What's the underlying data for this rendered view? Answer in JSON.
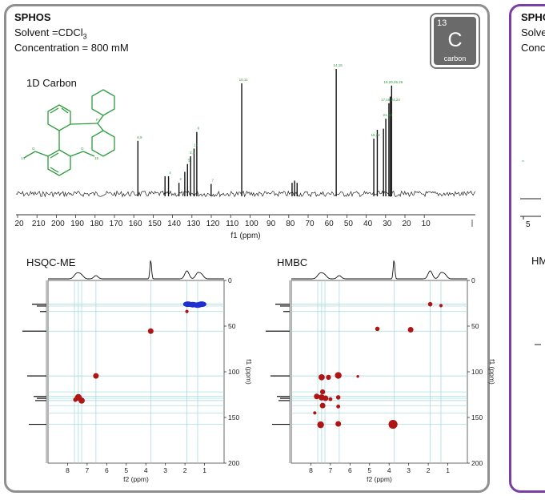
{
  "panel": {
    "compound": "SPHOS",
    "solvent_prefix": "Solvent =CDCl",
    "solvent_subscript": "3",
    "concentration": "Concentration = 800 mM",
    "spectrum_title": "1D Carbon",
    "badge": {
      "mass": "13",
      "symbol": "C",
      "name": "carbon"
    }
  },
  "side_panel": {
    "compound": "SPHO",
    "line1": "Solve",
    "line2": "Conc",
    "label_hm": "HM",
    "tick5": "5"
  },
  "colors": {
    "panel_border": "#8f8f8f",
    "side_border": "#7a3fa1",
    "positive": "#b01515",
    "negative": "#1c2fd0",
    "label_green": "#2b9c3c",
    "grid": "#9ed6dc"
  },
  "chart_data": [
    {
      "type": "line",
      "title": "1D Carbon",
      "xlabel": "f1 (ppm)",
      "xlim": [
        210,
        0
      ],
      "x_ticks": [
        "20",
        "210",
        "200",
        "190",
        "180",
        "170",
        "160",
        "150",
        "140",
        "130",
        "120",
        "110",
        "100",
        "90",
        "80",
        "70",
        "60",
        "50",
        "40",
        "30",
        "20",
        "10"
      ],
      "peaks": [
        {
          "ppm": 157.8,
          "height": 0.48,
          "label": "8,9"
        },
        {
          "ppm": 143.8,
          "height": 0.16,
          "label": ""
        },
        {
          "ppm": 142.0,
          "height": 0.16,
          "label": "4"
        },
        {
          "ppm": 136.6,
          "height": 0.1,
          "label": "2"
        },
        {
          "ppm": 133.6,
          "height": 0.2,
          "label": ""
        },
        {
          "ppm": 132.2,
          "height": 0.27,
          "label": "5"
        },
        {
          "ppm": 130.6,
          "height": 0.34,
          "label": "3,1"
        },
        {
          "ppm": 128.8,
          "height": 0.41,
          "label": "12"
        },
        {
          "ppm": 127.4,
          "height": 0.56,
          "label": "6"
        },
        {
          "ppm": 120.0,
          "height": 0.09,
          "label": "7"
        },
        {
          "ppm": 104.2,
          "height": 1.0,
          "label": "10,11"
        },
        {
          "ppm": 78.2,
          "height": 0.1,
          "label": ""
        },
        {
          "ppm": 76.9,
          "height": 0.12,
          "label": ""
        },
        {
          "ppm": 75.6,
          "height": 0.1,
          "label": ""
        },
        {
          "ppm": 55.4,
          "height": 1.13,
          "label": "14,15"
        },
        {
          "ppm": 36.0,
          "height": 0.5,
          "label": "16,22"
        },
        {
          "ppm": 34.2,
          "height": 0.58,
          "label": ""
        },
        {
          "ppm": 31.0,
          "height": 0.59,
          "label": ""
        },
        {
          "ppm": 29.8,
          "height": 0.68,
          "label": "21,23"
        },
        {
          "ppm": 28.2,
          "height": 0.82,
          "label": "17,18,24,24"
        },
        {
          "ppm": 27.5,
          "height": 0.88,
          "label": ""
        },
        {
          "ppm": 26.8,
          "height": 0.98,
          "label": "19,20,25,26"
        }
      ]
    },
    {
      "type": "scatter",
      "title": "HSQC-ME",
      "xlabel": "f2 (ppm)",
      "ylabel": "f1 (ppm)",
      "xlim": [
        9,
        0
      ],
      "ylim": [
        0,
        200
      ],
      "x_ticks": [
        "8",
        "7",
        "6",
        "5",
        "4",
        "3",
        "2",
        "1"
      ],
      "y_ticks": [
        "0",
        "50",
        "100",
        "150",
        "200"
      ],
      "cross_peaks": [
        {
          "h": 3.75,
          "c": 55.5,
          "phase": "positive",
          "size": 1.0
        },
        {
          "h": 6.55,
          "c": 104.5,
          "phase": "positive",
          "size": 1.0
        },
        {
          "h": 7.45,
          "c": 128.0,
          "phase": "positive",
          "size": 1.2
        },
        {
          "h": 7.28,
          "c": 131.5,
          "phase": "positive",
          "size": 1.1
        },
        {
          "h": 7.6,
          "c": 130.5,
          "phase": "positive",
          "size": 0.8
        },
        {
          "h": 1.9,
          "c": 34.0,
          "phase": "positive",
          "size": 0.6
        },
        {
          "h": 1.85,
          "c": 26.0,
          "phase": "negative",
          "size": 1.0
        },
        {
          "h": 1.6,
          "c": 26.5,
          "phase": "negative",
          "size": 1.0
        },
        {
          "h": 1.35,
          "c": 27.0,
          "phase": "negative",
          "size": 1.0
        },
        {
          "h": 1.15,
          "c": 26.0,
          "phase": "negative",
          "size": 1.0
        }
      ]
    },
    {
      "type": "scatter",
      "title": "HMBC",
      "xlabel": "f2 (ppm)",
      "ylabel": "f1 (ppm)",
      "xlim": [
        9,
        0
      ],
      "ylim": [
        0,
        200
      ],
      "x_ticks": [
        "8",
        "7",
        "6",
        "5",
        "4",
        "3",
        "2",
        "1"
      ],
      "y_ticks": [
        "0",
        "50",
        "100",
        "150",
        "200"
      ],
      "cross_peaks": [
        {
          "h": 1.9,
          "c": 26.0,
          "phase": "positive",
          "size": 0.8
        },
        {
          "h": 1.35,
          "c": 27.5,
          "phase": "positive",
          "size": 0.6
        },
        {
          "h": 4.6,
          "c": 53.0,
          "phase": "positive",
          "size": 0.8
        },
        {
          "h": 2.9,
          "c": 54.0,
          "phase": "positive",
          "size": 1.0
        },
        {
          "h": 6.6,
          "c": 104.0,
          "phase": "positive",
          "size": 1.2
        },
        {
          "h": 7.45,
          "c": 106.0,
          "phase": "positive",
          "size": 1.1
        },
        {
          "h": 7.1,
          "c": 106.0,
          "phase": "positive",
          "size": 0.9
        },
        {
          "h": 5.6,
          "c": 105.0,
          "phase": "positive",
          "size": 0.5
        },
        {
          "h": 7.7,
          "c": 127.0,
          "phase": "positive",
          "size": 1.0
        },
        {
          "h": 7.45,
          "c": 128.0,
          "phase": "positive",
          "size": 1.1
        },
        {
          "h": 7.25,
          "c": 129.0,
          "phase": "positive",
          "size": 1.0
        },
        {
          "h": 7.0,
          "c": 130.0,
          "phase": "positive",
          "size": 0.7
        },
        {
          "h": 7.4,
          "c": 122.0,
          "phase": "positive",
          "size": 0.9
        },
        {
          "h": 7.4,
          "c": 137.0,
          "phase": "positive",
          "size": 1.0
        },
        {
          "h": 6.6,
          "c": 128.0,
          "phase": "positive",
          "size": 0.8
        },
        {
          "h": 6.6,
          "c": 138.0,
          "phase": "positive",
          "size": 0.7
        },
        {
          "h": 7.8,
          "c": 145.0,
          "phase": "positive",
          "size": 0.6
        },
        {
          "h": 7.5,
          "c": 158.0,
          "phase": "positive",
          "size": 1.2
        },
        {
          "h": 6.6,
          "c": 157.0,
          "phase": "positive",
          "size": 1.0
        },
        {
          "h": 3.8,
          "c": 157.5,
          "phase": "positive",
          "size": 1.6
        }
      ]
    }
  ]
}
